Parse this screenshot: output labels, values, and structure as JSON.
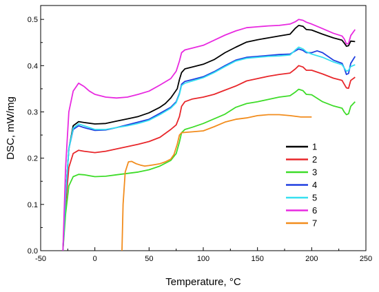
{
  "chart_data": {
    "type": "line",
    "title": "",
    "xlabel": "Temperature, ",
    "xlabel_unit": "°C",
    "ylabel": "DSC, mW/mg",
    "xlim": [
      -50,
      250
    ],
    "ylim": [
      0.0,
      0.53
    ],
    "x_ticks": [
      -50,
      0,
      50,
      100,
      150,
      200,
      250
    ],
    "x_tick_labels": [
      "-50",
      "0",
      "50",
      "100",
      "150",
      "200",
      "250"
    ],
    "y_ticks": [
      0.0,
      0.1,
      0.2,
      0.3,
      0.4,
      0.5
    ],
    "y_tick_labels": [
      "0.0",
      "0.1",
      "0.2",
      "0.3",
      "0.4",
      "0.5"
    ],
    "grid": false,
    "legend_position": "right-center",
    "series": [
      {
        "name": "1",
        "color": "#000000",
        "points": [
          [
            -29.5,
            0
          ],
          [
            -27,
            0.12
          ],
          [
            -24,
            0.22
          ],
          [
            -20,
            0.27
          ],
          [
            -15,
            0.279
          ],
          [
            -10,
            0.277
          ],
          [
            0,
            0.274
          ],
          [
            10,
            0.275
          ],
          [
            20,
            0.28
          ],
          [
            30,
            0.285
          ],
          [
            40,
            0.29
          ],
          [
            50,
            0.298
          ],
          [
            60,
            0.31
          ],
          [
            65,
            0.318
          ],
          [
            70,
            0.33
          ],
          [
            73,
            0.34
          ],
          [
            76,
            0.35
          ],
          [
            78,
            0.37
          ],
          [
            80,
            0.385
          ],
          [
            83,
            0.393
          ],
          [
            90,
            0.397
          ],
          [
            100,
            0.403
          ],
          [
            110,
            0.413
          ],
          [
            120,
            0.428
          ],
          [
            130,
            0.44
          ],
          [
            140,
            0.451
          ],
          [
            150,
            0.456
          ],
          [
            160,
            0.46
          ],
          [
            170,
            0.464
          ],
          [
            180,
            0.468
          ],
          [
            185,
            0.481
          ],
          [
            188,
            0.487
          ],
          [
            192,
            0.485
          ],
          [
            195,
            0.478
          ],
          [
            200,
            0.477
          ],
          [
            210,
            0.468
          ],
          [
            220,
            0.46
          ],
          [
            228,
            0.455
          ],
          [
            230,
            0.449
          ],
          [
            232,
            0.442
          ],
          [
            234,
            0.443
          ],
          [
            236,
            0.453
          ],
          [
            240,
            0.452
          ]
        ]
      },
      {
        "name": "2",
        "color": "#e8262a",
        "points": [
          [
            -29.5,
            0
          ],
          [
            -27,
            0.1
          ],
          [
            -24,
            0.18
          ],
          [
            -20,
            0.21
          ],
          [
            -15,
            0.217
          ],
          [
            -10,
            0.215
          ],
          [
            0,
            0.212
          ],
          [
            10,
            0.215
          ],
          [
            20,
            0.22
          ],
          [
            30,
            0.225
          ],
          [
            40,
            0.23
          ],
          [
            50,
            0.236
          ],
          [
            60,
            0.245
          ],
          [
            70,
            0.262
          ],
          [
            75,
            0.272
          ],
          [
            78,
            0.29
          ],
          [
            80,
            0.312
          ],
          [
            83,
            0.322
          ],
          [
            90,
            0.328
          ],
          [
            100,
            0.332
          ],
          [
            110,
            0.338
          ],
          [
            120,
            0.347
          ],
          [
            130,
            0.356
          ],
          [
            140,
            0.367
          ],
          [
            150,
            0.372
          ],
          [
            160,
            0.377
          ],
          [
            170,
            0.381
          ],
          [
            180,
            0.384
          ],
          [
            185,
            0.393
          ],
          [
            188,
            0.4
          ],
          [
            192,
            0.397
          ],
          [
            195,
            0.39
          ],
          [
            200,
            0.39
          ],
          [
            210,
            0.382
          ],
          [
            220,
            0.373
          ],
          [
            228,
            0.368
          ],
          [
            230,
            0.36
          ],
          [
            232,
            0.352
          ],
          [
            234,
            0.351
          ],
          [
            236,
            0.368
          ],
          [
            240,
            0.375
          ]
        ]
      },
      {
        "name": "3",
        "color": "#3ddc28",
        "points": [
          [
            -29.5,
            0
          ],
          [
            -27,
            0.08
          ],
          [
            -24,
            0.14
          ],
          [
            -20,
            0.16
          ],
          [
            -15,
            0.165
          ],
          [
            -10,
            0.164
          ],
          [
            0,
            0.16
          ],
          [
            10,
            0.161
          ],
          [
            20,
            0.164
          ],
          [
            30,
            0.167
          ],
          [
            40,
            0.17
          ],
          [
            50,
            0.175
          ],
          [
            60,
            0.183
          ],
          [
            70,
            0.195
          ],
          [
            75,
            0.21
          ],
          [
            78,
            0.235
          ],
          [
            80,
            0.255
          ],
          [
            83,
            0.262
          ],
          [
            90,
            0.267
          ],
          [
            100,
            0.275
          ],
          [
            110,
            0.285
          ],
          [
            120,
            0.295
          ],
          [
            130,
            0.31
          ],
          [
            140,
            0.318
          ],
          [
            150,
            0.322
          ],
          [
            160,
            0.327
          ],
          [
            170,
            0.332
          ],
          [
            180,
            0.335
          ],
          [
            185,
            0.343
          ],
          [
            188,
            0.349
          ],
          [
            192,
            0.346
          ],
          [
            195,
            0.338
          ],
          [
            200,
            0.337
          ],
          [
            210,
            0.322
          ],
          [
            220,
            0.313
          ],
          [
            228,
            0.308
          ],
          [
            230,
            0.3
          ],
          [
            232,
            0.294
          ],
          [
            234,
            0.296
          ],
          [
            236,
            0.312
          ],
          [
            240,
            0.322
          ]
        ]
      },
      {
        "name": "4",
        "color": "#1f3fe0",
        "points": [
          [
            -29.5,
            0
          ],
          [
            -27,
            0.12
          ],
          [
            -24,
            0.22
          ],
          [
            -20,
            0.262
          ],
          [
            -15,
            0.27
          ],
          [
            -10,
            0.266
          ],
          [
            0,
            0.26
          ],
          [
            10,
            0.261
          ],
          [
            20,
            0.266
          ],
          [
            30,
            0.272
          ],
          [
            40,
            0.278
          ],
          [
            50,
            0.284
          ],
          [
            60,
            0.297
          ],
          [
            70,
            0.31
          ],
          [
            75,
            0.322
          ],
          [
            78,
            0.34
          ],
          [
            80,
            0.36
          ],
          [
            83,
            0.366
          ],
          [
            90,
            0.37
          ],
          [
            100,
            0.376
          ],
          [
            110,
            0.387
          ],
          [
            120,
            0.4
          ],
          [
            130,
            0.412
          ],
          [
            140,
            0.418
          ],
          [
            150,
            0.42
          ],
          [
            160,
            0.422
          ],
          [
            170,
            0.424
          ],
          [
            180,
            0.425
          ],
          [
            185,
            0.432
          ],
          [
            188,
            0.436
          ],
          [
            192,
            0.433
          ],
          [
            195,
            0.428
          ],
          [
            200,
            0.428
          ],
          [
            205,
            0.432
          ],
          [
            210,
            0.428
          ],
          [
            220,
            0.412
          ],
          [
            228,
            0.405
          ],
          [
            230,
            0.395
          ],
          [
            232,
            0.381
          ],
          [
            234,
            0.383
          ],
          [
            236,
            0.405
          ],
          [
            240,
            0.42
          ]
        ]
      },
      {
        "name": "5",
        "color": "#35e0f0",
        "points": [
          [
            -29.5,
            0
          ],
          [
            -27,
            0.12
          ],
          [
            -24,
            0.22
          ],
          [
            -20,
            0.265
          ],
          [
            -15,
            0.274
          ],
          [
            -10,
            0.27
          ],
          [
            0,
            0.262
          ],
          [
            10,
            0.262
          ],
          [
            20,
            0.266
          ],
          [
            30,
            0.27
          ],
          [
            40,
            0.275
          ],
          [
            50,
            0.282
          ],
          [
            60,
            0.294
          ],
          [
            70,
            0.308
          ],
          [
            75,
            0.32
          ],
          [
            78,
            0.338
          ],
          [
            80,
            0.357
          ],
          [
            83,
            0.362
          ],
          [
            90,
            0.367
          ],
          [
            100,
            0.374
          ],
          [
            110,
            0.385
          ],
          [
            120,
            0.398
          ],
          [
            130,
            0.41
          ],
          [
            140,
            0.416
          ],
          [
            150,
            0.418
          ],
          [
            160,
            0.42
          ],
          [
            170,
            0.421
          ],
          [
            180,
            0.423
          ],
          [
            185,
            0.434
          ],
          [
            188,
            0.44
          ],
          [
            192,
            0.436
          ],
          [
            195,
            0.43
          ],
          [
            200,
            0.425
          ],
          [
            210,
            0.418
          ],
          [
            220,
            0.408
          ],
          [
            228,
            0.402
          ],
          [
            230,
            0.395
          ],
          [
            232,
            0.388
          ],
          [
            234,
            0.39
          ],
          [
            236,
            0.398
          ],
          [
            240,
            0.402
          ]
        ]
      },
      {
        "name": "6",
        "color": "#e829e0",
        "points": [
          [
            -29.5,
            0
          ],
          [
            -27,
            0.18
          ],
          [
            -24,
            0.3
          ],
          [
            -20,
            0.345
          ],
          [
            -15,
            0.362
          ],
          [
            -10,
            0.355
          ],
          [
            -5,
            0.345
          ],
          [
            0,
            0.338
          ],
          [
            10,
            0.332
          ],
          [
            20,
            0.33
          ],
          [
            30,
            0.332
          ],
          [
            40,
            0.338
          ],
          [
            50,
            0.345
          ],
          [
            60,
            0.358
          ],
          [
            70,
            0.372
          ],
          [
            75,
            0.388
          ],
          [
            78,
            0.41
          ],
          [
            80,
            0.428
          ],
          [
            83,
            0.434
          ],
          [
            90,
            0.438
          ],
          [
            100,
            0.444
          ],
          [
            110,
            0.455
          ],
          [
            120,
            0.466
          ],
          [
            130,
            0.475
          ],
          [
            140,
            0.482
          ],
          [
            150,
            0.484
          ],
          [
            160,
            0.486
          ],
          [
            170,
            0.487
          ],
          [
            180,
            0.49
          ],
          [
            185,
            0.495
          ],
          [
            188,
            0.5
          ],
          [
            192,
            0.498
          ],
          [
            195,
            0.494
          ],
          [
            200,
            0.49
          ],
          [
            210,
            0.48
          ],
          [
            220,
            0.47
          ],
          [
            228,
            0.464
          ],
          [
            230,
            0.458
          ],
          [
            232,
            0.447
          ],
          [
            234,
            0.448
          ],
          [
            236,
            0.465
          ],
          [
            240,
            0.478
          ]
        ]
      },
      {
        "name": "7",
        "color": "#f28c1c",
        "points": [
          [
            25,
            0
          ],
          [
            26,
            0.1
          ],
          [
            28,
            0.17
          ],
          [
            31,
            0.192
          ],
          [
            34,
            0.193
          ],
          [
            38,
            0.188
          ],
          [
            42,
            0.185
          ],
          [
            46,
            0.183
          ],
          [
            50,
            0.184
          ],
          [
            55,
            0.186
          ],
          [
            60,
            0.188
          ],
          [
            65,
            0.192
          ],
          [
            70,
            0.198
          ],
          [
            73,
            0.208
          ],
          [
            76,
            0.23
          ],
          [
            78,
            0.25
          ],
          [
            80,
            0.255
          ],
          [
            85,
            0.256
          ],
          [
            90,
            0.257
          ],
          [
            100,
            0.259
          ],
          [
            110,
            0.268
          ],
          [
            120,
            0.278
          ],
          [
            130,
            0.284
          ],
          [
            140,
            0.287
          ],
          [
            150,
            0.292
          ],
          [
            160,
            0.294
          ],
          [
            170,
            0.294
          ],
          [
            180,
            0.292
          ],
          [
            190,
            0.289
          ],
          [
            200,
            0.289
          ]
        ]
      }
    ]
  }
}
